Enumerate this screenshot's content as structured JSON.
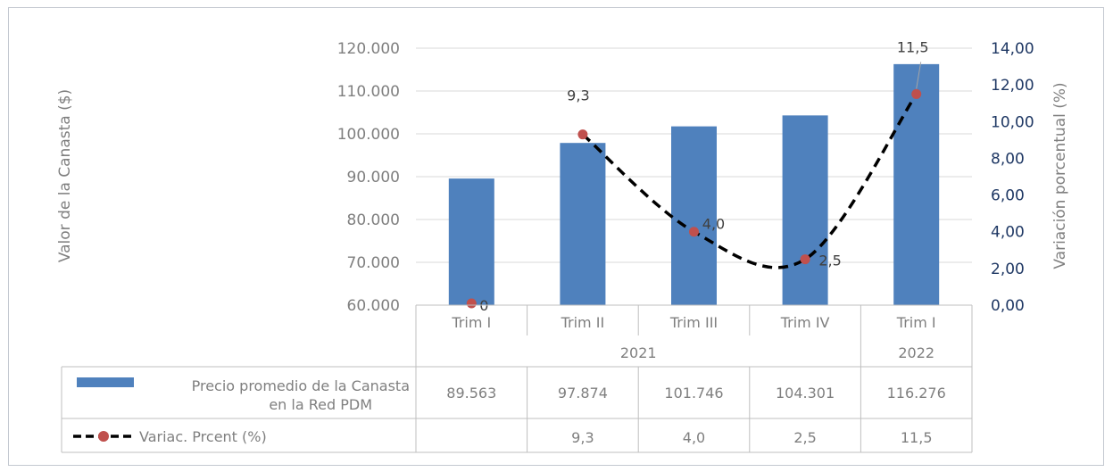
{
  "chart_data": {
    "type": "bar",
    "categories": [
      "Trim I",
      "Trim II",
      "Trim III",
      "Trim IV",
      "Trim I"
    ],
    "groups": [
      {
        "label": "2021",
        "span": 4
      },
      {
        "label": "2022",
        "span": 1
      }
    ],
    "series": [
      {
        "name": "Precio promedio de la Canasta en la Red PDM",
        "type": "bar",
        "axis": "left",
        "color": "#4f81bd",
        "values": [
          89563,
          97874,
          101746,
          104301,
          116276
        ],
        "labels": [
          "89.563",
          "97.874",
          "101.746",
          "104.301",
          "116.276"
        ]
      },
      {
        "name": "Variac. Prcent (%)",
        "type": "line",
        "axis": "right",
        "line_color": "#000000",
        "line_style": "dashed-smooth",
        "marker_color": "#c0504d",
        "values": [
          0,
          9.3,
          4.0,
          2.5,
          11.5
        ],
        "data_labels": [
          "0",
          "9,3",
          "4,0",
          "2,5",
          "11,5"
        ],
        "table_labels": [
          "",
          "9,3",
          "4,0",
          "2,5",
          "11,5"
        ]
      }
    ],
    "ylabel": "Valor de la Canasta ($)",
    "ylabel_right": "Variación porcentual (%)",
    "ylim": [
      60000,
      120000
    ],
    "ylim_right": [
      0,
      14
    ],
    "yticks": [
      "60.000",
      "70.000",
      "80.000",
      "90.000",
      "100.000",
      "110.000",
      "120.000"
    ],
    "yticks_right": [
      "0,00",
      "2,00",
      "4,00",
      "6,00",
      "8,00",
      "10,00",
      "12,00",
      "14,00"
    ],
    "grid": true,
    "legend": "data-table"
  }
}
